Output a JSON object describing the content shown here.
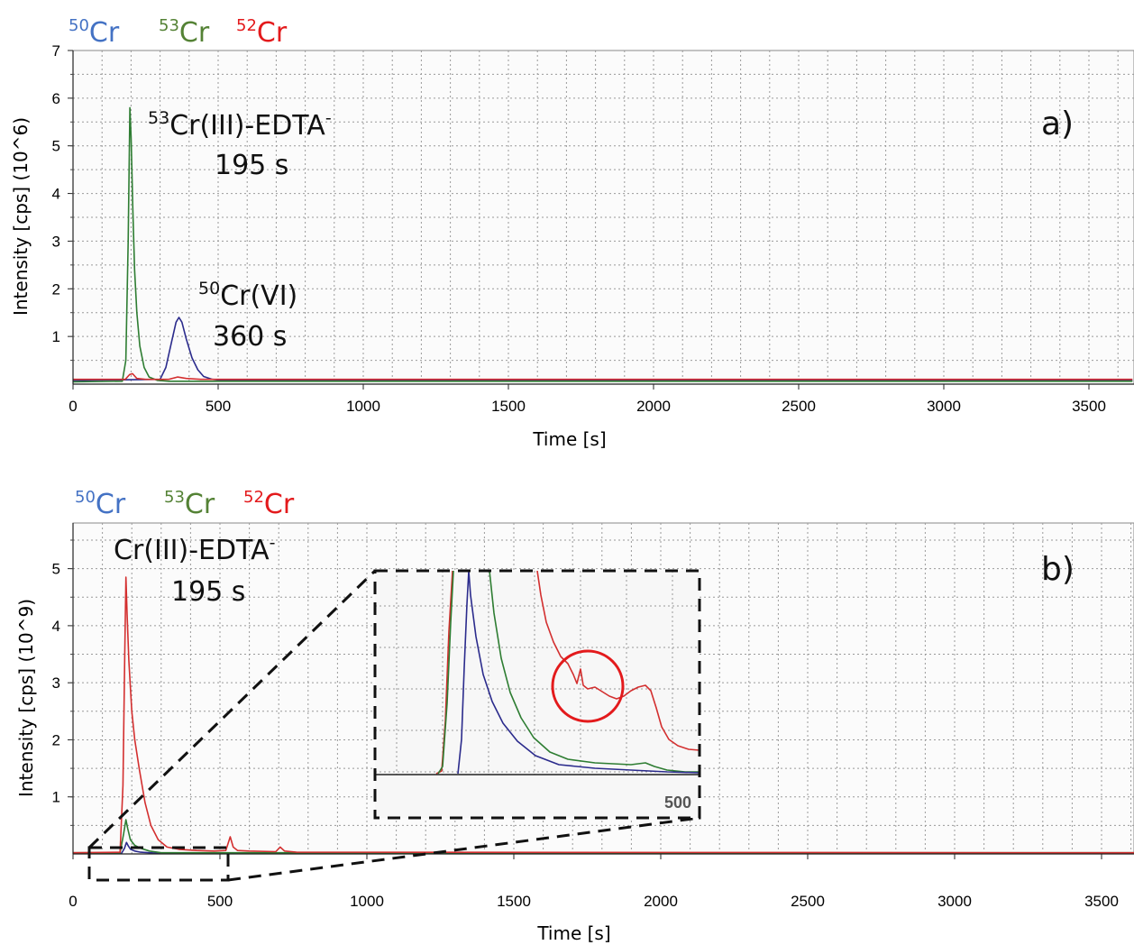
{
  "chart_data": [
    {
      "panel_label": "a)",
      "type": "line",
      "xlabel": "Time [s]",
      "ylabel": "Intensity [cps] (10^6)",
      "xlim": [
        0,
        3650
      ],
      "ylim": [
        0,
        7
      ],
      "xticks": [
        "0",
        "500",
        "1000",
        "1500",
        "2000",
        "2500",
        "3000",
        "3500"
      ],
      "yticks": [
        "1",
        "2",
        "3",
        "4",
        "5",
        "6",
        "7"
      ],
      "legend": [
        {
          "mass": "50",
          "element": "Cr",
          "color": "#4472c4"
        },
        {
          "mass": "53",
          "element": "Cr",
          "color": "#548235"
        },
        {
          "mass": "52",
          "element": "Cr",
          "color": "#e31a1c"
        }
      ],
      "annotations": [
        {
          "sup": "53",
          "text": "Cr(III)-EDTA",
          "sup_end": "-",
          "line2": "195 s"
        },
        {
          "sup": "50",
          "text": "Cr(VI)",
          "line2": "360 s"
        }
      ],
      "series": [
        {
          "name": "50Cr",
          "color": "#2b2b8c",
          "x": [
            0,
            300,
            320,
            340,
            355,
            365,
            375,
            390,
            410,
            430,
            450,
            480,
            520,
            600,
            800,
            3650
          ],
          "y": [
            0.08,
            0.1,
            0.35,
            0.9,
            1.3,
            1.4,
            1.3,
            0.95,
            0.55,
            0.3,
            0.16,
            0.1,
            0.08,
            0.08,
            0.08,
            0.08
          ]
        },
        {
          "name": "53Cr",
          "color": "#2e7d32",
          "x": [
            0,
            170,
            182,
            190,
            196,
            200,
            206,
            212,
            220,
            230,
            245,
            262,
            290,
            330,
            400,
            3650
          ],
          "y": [
            0.05,
            0.06,
            0.5,
            3.0,
            5.8,
            5.2,
            3.7,
            2.4,
            1.5,
            0.8,
            0.35,
            0.15,
            0.08,
            0.06,
            0.06,
            0.06
          ]
        },
        {
          "name": "52Cr",
          "color": "#d32f2f",
          "x": [
            0,
            180,
            195,
            205,
            220,
            250,
            330,
            360,
            390,
            440,
            600,
            3650
          ],
          "y": [
            0.1,
            0.1,
            0.2,
            0.22,
            0.12,
            0.1,
            0.1,
            0.15,
            0.12,
            0.1,
            0.1,
            0.1
          ]
        }
      ]
    },
    {
      "panel_label": "b)",
      "type": "line",
      "xlabel": "Time [s]",
      "ylabel": "Intensity [cps] (10^9)",
      "xlim": [
        0,
        3650
      ],
      "ylim": [
        0,
        5.8
      ],
      "xticks": [
        "0",
        "500",
        "1000",
        "1500",
        "2000",
        "2500",
        "3000",
        "3500"
      ],
      "yticks": [
        "1",
        "2",
        "3",
        "4",
        "5"
      ],
      "legend": [
        {
          "mass": "50",
          "element": "Cr",
          "color": "#4472c4"
        },
        {
          "mass": "53",
          "element": "Cr",
          "color": "#548235"
        },
        {
          "mass": "52",
          "element": "Cr",
          "color": "#e31a1c"
        }
      ],
      "annotations": [
        {
          "text": "Cr(III)-EDTA",
          "sup_end": "-",
          "line2": "195 s"
        }
      ],
      "inset": {
        "xtick_label": "500"
      },
      "series": [
        {
          "name": "50Cr",
          "color": "#2b2b8c",
          "x": [
            0,
            165,
            175,
            182,
            188,
            196,
            210,
            230,
            260,
            300,
            3650
          ],
          "y": [
            0.01,
            0.01,
            0.1,
            0.2,
            0.14,
            0.08,
            0.05,
            0.03,
            0.02,
            0.01,
            0.01
          ]
        },
        {
          "name": "53Cr",
          "color": "#2e7d32",
          "x": [
            0,
            160,
            172,
            180,
            186,
            195,
            210,
            230,
            260,
            300,
            3650
          ],
          "y": [
            0.02,
            0.02,
            0.35,
            0.6,
            0.45,
            0.25,
            0.15,
            0.1,
            0.05,
            0.02,
            0.02
          ]
        },
        {
          "name": "52Cr",
          "color": "#d32f2f",
          "x": [
            0,
            160,
            170,
            176,
            180,
            184,
            190,
            200,
            210,
            225,
            245,
            265,
            290,
            320,
            360,
            420,
            480,
            520,
            535,
            545,
            560,
            600,
            690,
            705,
            720,
            760,
            3650
          ],
          "y": [
            0.02,
            0.03,
            1.2,
            3.5,
            4.85,
            4.2,
            3.4,
            2.5,
            2.0,
            1.5,
            0.9,
            0.5,
            0.25,
            0.12,
            0.08,
            0.06,
            0.05,
            0.06,
            0.3,
            0.12,
            0.06,
            0.05,
            0.04,
            0.12,
            0.05,
            0.03,
            0.02
          ]
        }
      ]
    }
  ]
}
